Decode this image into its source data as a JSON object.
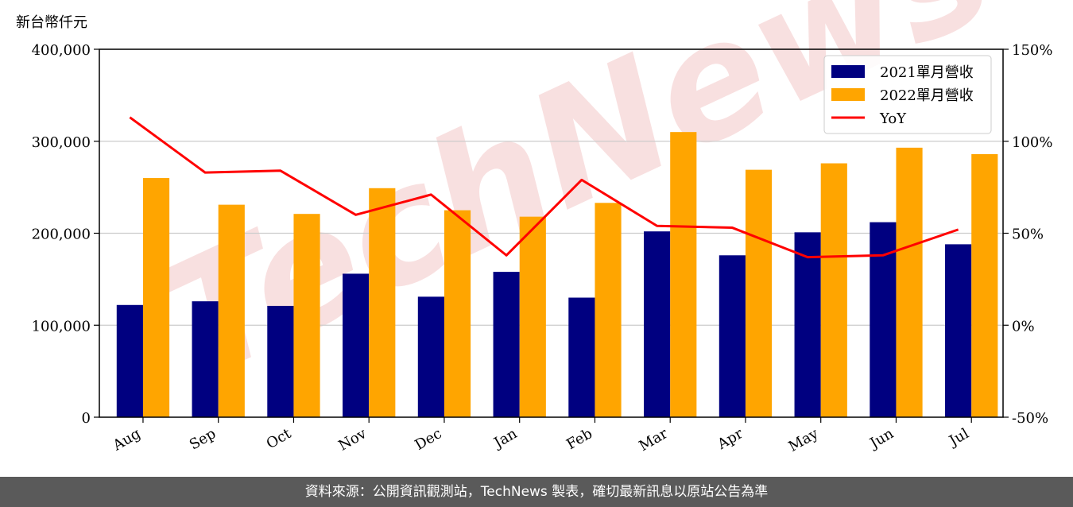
{
  "chart_data": {
    "type": "bar",
    "unit_label": "新台幣仟元",
    "categories": [
      "Aug",
      "Sep",
      "Oct",
      "Nov",
      "Dec",
      "Jan",
      "Feb",
      "Mar",
      "Apr",
      "May",
      "Jun",
      "Jul"
    ],
    "series": [
      {
        "name": "2021單月營收",
        "type": "bar",
        "axis": "left",
        "color": "#000080",
        "values": [
          122000,
          126000,
          121000,
          156000,
          131000,
          158000,
          130000,
          202000,
          176000,
          201000,
          212000,
          188000
        ]
      },
      {
        "name": "2022單月營收",
        "type": "bar",
        "axis": "left",
        "color": "#ffa500",
        "values": [
          260000,
          231000,
          221000,
          249000,
          225000,
          218000,
          233000,
          310000,
          269000,
          276000,
          293000,
          286000
        ]
      },
      {
        "name": "YoY",
        "type": "line",
        "axis": "right",
        "color": "#ff0000",
        "values": [
          113,
          83,
          84,
          60,
          71,
          38,
          79,
          54,
          53,
          37,
          38,
          52
        ]
      }
    ],
    "left_axis": {
      "ylim": [
        0,
        400000
      ],
      "ticks": [
        0,
        100000,
        200000,
        300000,
        400000
      ],
      "tick_labels": [
        "0",
        "100,000",
        "200,000",
        "300,000",
        "400,000"
      ]
    },
    "right_axis": {
      "ylim": [
        -50,
        150
      ],
      "ticks": [
        -50,
        0,
        50,
        100,
        150
      ],
      "tick_labels": [
        "-50%",
        "0%",
        "50%",
        "100%",
        "150%"
      ]
    },
    "grid": "horizontal",
    "legend_position": "top-right"
  },
  "watermark": "TechNews",
  "footer": {
    "text": "資料來源：公開資訊觀測站，TechNews 製表，確切最新訊息以原站公告為準"
  }
}
